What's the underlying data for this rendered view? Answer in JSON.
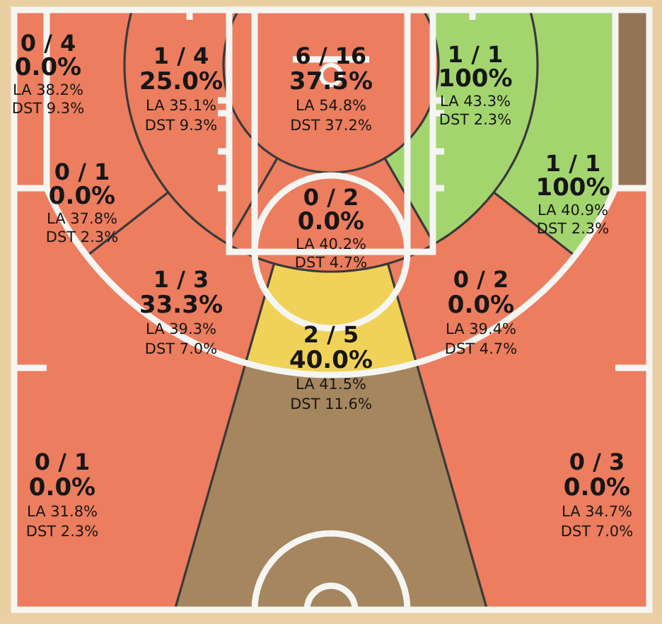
{
  "chart_data": {
    "type": "other",
    "categories": [
      "0 / 4",
      "1 / 4",
      "6 / 16",
      "1 / 1",
      null,
      "0 / 1",
      "1 / 1",
      "0 / 2",
      "1 / 3",
      "0 / 2",
      "2 / 5",
      "0 / 1",
      null,
      "0 / 3"
    ],
    "series": [
      {
        "values": [
          0,
          25,
          37.5,
          100,
          null,
          0,
          100,
          0,
          33.3,
          0,
          40,
          0,
          null,
          0
        ],
        "value_labels": [
          "0.0%",
          "25.0%",
          "37.5%",
          "100%",
          null,
          "0.0%",
          "100%",
          "0.0%",
          "33.3%",
          "0.0%",
          "40.0%",
          "0.0%",
          null,
          "0.0%"
        ],
        "colors": [
          "#ec7d5f",
          "#ec7d5f",
          "#ec7d5f",
          "#a3d56f",
          "#937556",
          "#ec7d5f",
          "#a3d56f",
          "#ec7d5f",
          "#ec7d5f",
          "#ec7d5f",
          "#f0d259",
          "#ec7d5f",
          "#a6865f",
          "#ec7d5f"
        ]
      },
      {
        "name": "LA",
        "values": [
          38.2,
          35.1,
          54.8,
          43.3,
          null,
          37.8,
          40.9,
          40.2,
          39.3,
          39.4,
          41.5,
          31.8,
          null,
          34.7
        ],
        "value_labels": [
          "38.2%",
          "35.1%",
          "54.8%",
          "43.3%",
          null,
          "37.8%",
          "40.9%",
          "40.2%",
          "39.3%",
          "39.4%",
          "41.5%",
          "31.8%",
          null,
          "34.7%"
        ]
      },
      {
        "name": "DST",
        "values": [
          9.3,
          9.3,
          37.2,
          2.3,
          null,
          2.3,
          2.3,
          4.7,
          7.0,
          4.7,
          11.6,
          2.3,
          null,
          7.0
        ],
        "value_labels": [
          "9.3%",
          "9.3%",
          "37.2%",
          "2.3%",
          null,
          "2.3%",
          "2.3%",
          "4.7%",
          "7.0%",
          "4.7%",
          "11.6%",
          "2.3%",
          null,
          "7.0%"
        ]
      }
    ]
  }
}
